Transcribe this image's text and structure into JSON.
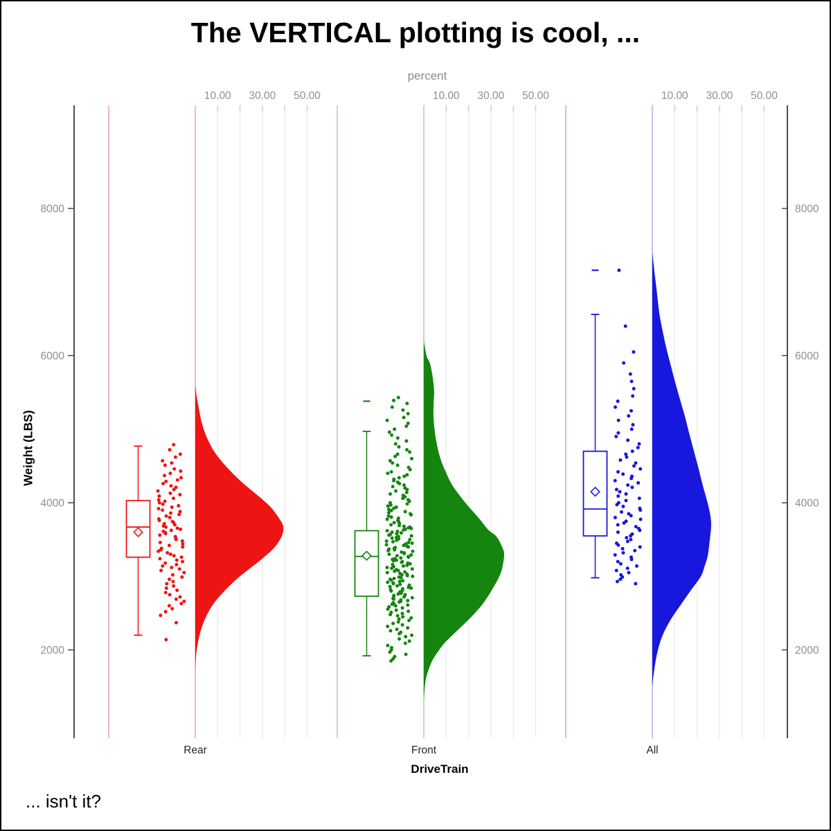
{
  "title": "The VERTICAL plotting is cool, ...",
  "footnote": "... isn't it?",
  "axes": {
    "top": {
      "label": "percent",
      "tick_labels": [
        "10.00",
        "30.00",
        "50.00"
      ],
      "tick_values": [
        10,
        30,
        50
      ],
      "gridline_values": [
        10,
        20,
        30,
        40,
        50
      ]
    },
    "left": {
      "label": "Weight (LBS)",
      "tick_values": [
        2000,
        4000,
        6000,
        8000
      ]
    },
    "right": {
      "tick_values": [
        2000,
        4000,
        6000,
        8000
      ]
    },
    "bottom": {
      "label": "DriveTrain",
      "categories": [
        "Rear",
        "Front",
        "All"
      ]
    }
  },
  "chart_data": {
    "type": "raincloud",
    "description": "vertical half-violin (density in percent) + box plot with mean diamond + jittered raw points, one cloud per DriveTrain category",
    "weight_axis_ticks": [
      2000,
      4000,
      6000,
      8000
    ],
    "percent_axis": {
      "tick_values": [
        10,
        30,
        50
      ],
      "gridline_values": [
        10,
        20,
        30,
        40,
        50
      ]
    },
    "groups": [
      {
        "name": "Rear",
        "color": "#EE1414",
        "light_color": "#F8B9B9",
        "box": {
          "whisker_low": 2200,
          "q1": 3260,
          "median": 3670,
          "mean": 3600,
          "q3": 4030,
          "whisker_high": 4770,
          "far_outliers": []
        },
        "violin_profile": [
          [
            5600,
            0
          ],
          [
            5450,
            0.6
          ],
          [
            5300,
            1.5
          ],
          [
            5100,
            2.8
          ],
          [
            4900,
            5.0
          ],
          [
            4700,
            8.4
          ],
          [
            4500,
            13.6
          ],
          [
            4300,
            20.1
          ],
          [
            4100,
            27.9
          ],
          [
            3950,
            33.4
          ],
          [
            3800,
            37.2
          ],
          [
            3680,
            39.3
          ],
          [
            3550,
            38.7
          ],
          [
            3400,
            35.6
          ],
          [
            3250,
            30.3
          ],
          [
            3100,
            24.1
          ],
          [
            2950,
            18.0
          ],
          [
            2800,
            13.0
          ],
          [
            2650,
            8.7
          ],
          [
            2500,
            5.6
          ],
          [
            2350,
            3.4
          ],
          [
            2200,
            1.9
          ],
          [
            2050,
            0.9
          ],
          [
            1900,
            0.3
          ],
          [
            1700,
            0
          ]
        ],
        "points": [
          4790,
          4720,
          4660,
          4620,
          4570,
          4540,
          4510,
          4460,
          4430,
          4400,
          4370,
          4340,
          4310,
          4290,
          4260,
          4230,
          4210,
          4180,
          4160,
          4130,
          4110,
          4090,
          4060,
          4040,
          4020,
          4000,
          3980,
          3960,
          3940,
          3920,
          3900,
          3880,
          3860,
          3840,
          3820,
          3800,
          3780,
          3760,
          3745,
          3730,
          3715,
          3700,
          3685,
          3670,
          3655,
          3640,
          3625,
          3610,
          3595,
          3580,
          3560,
          3540,
          3520,
          3500,
          3480,
          3460,
          3440,
          3420,
          3400,
          3380,
          3360,
          3340,
          3320,
          3300,
          3280,
          3260,
          3240,
          3220,
          3200,
          3180,
          3160,
          3140,
          3120,
          3100,
          3080,
          3050,
          3020,
          2990,
          2960,
          2930,
          2900,
          2870,
          2840,
          2810,
          2780,
          2750,
          2720,
          2690,
          2660,
          2630,
          2600,
          2560,
          2520,
          2470,
          2370,
          2140
        ]
      },
      {
        "name": "Front",
        "color": "#158510",
        "light_color": "#BEDCBE",
        "box": {
          "whisker_low": 1920,
          "q1": 2730,
          "median": 3270,
          "mean": 3280,
          "q3": 3620,
          "whisker_high": 4970,
          "far_outliers": [
            5380
          ]
        },
        "violin_profile": [
          [
            6200,
            0
          ],
          [
            6000,
            1.2
          ],
          [
            5890,
            2.8
          ],
          [
            5700,
            4.0
          ],
          [
            5520,
            4.6
          ],
          [
            5350,
            4.4
          ],
          [
            5200,
            4.3
          ],
          [
            5050,
            4.6
          ],
          [
            4885,
            5.3
          ],
          [
            4730,
            6.3
          ],
          [
            4575,
            7.7
          ],
          [
            4420,
            9.8
          ],
          [
            4255,
            12.4
          ],
          [
            4100,
            16.0
          ],
          [
            3945,
            20.1
          ],
          [
            3790,
            24.6
          ],
          [
            3633,
            28.8
          ],
          [
            3540,
            32.5
          ],
          [
            3380,
            35.3
          ],
          [
            3285,
            35.9
          ],
          [
            3100,
            35.0
          ],
          [
            2970,
            33.3
          ],
          [
            2845,
            31.0
          ],
          [
            2720,
            28.5
          ],
          [
            2600,
            25.7
          ],
          [
            2470,
            21.9
          ],
          [
            2350,
            18.0
          ],
          [
            2220,
            13.5
          ],
          [
            2095,
            9.3
          ],
          [
            1970,
            6.2
          ],
          [
            1850,
            3.7
          ],
          [
            1720,
            2.0
          ],
          [
            1600,
            0.9
          ],
          [
            1450,
            0.3
          ],
          [
            1320,
            0
          ]
        ],
        "points": [
          5430,
          5390,
          5350,
          5300,
          5260,
          5210,
          5160,
          5120,
          5080,
          5040,
          5000,
          4960,
          4920,
          4880,
          4840,
          4800,
          4760,
          4720,
          4690,
          4660,
          4630,
          4600,
          4570,
          4540,
          4510,
          4480,
          4450,
          4420,
          4400,
          4380,
          4360,
          4340,
          4320,
          4300,
          4280,
          4260,
          4240,
          4220,
          4200,
          4180,
          4160,
          4140,
          4120,
          4100,
          4080,
          4060,
          4040,
          4020,
          4000,
          3985,
          3970,
          3955,
          3940,
          3925,
          3910,
          3895,
          3880,
          3865,
          3850,
          3835,
          3820,
          3805,
          3790,
          3775,
          3760,
          3745,
          3730,
          3715,
          3700,
          3690,
          3680,
          3670,
          3660,
          3650,
          3640,
          3630,
          3620,
          3610,
          3600,
          3590,
          3580,
          3570,
          3560,
          3550,
          3540,
          3530,
          3520,
          3510,
          3500,
          3490,
          3480,
          3470,
          3460,
          3450,
          3440,
          3430,
          3420,
          3410,
          3400,
          3390,
          3380,
          3370,
          3360,
          3350,
          3340,
          3330,
          3320,
          3310,
          3300,
          3290,
          3280,
          3270,
          3260,
          3250,
          3240,
          3230,
          3220,
          3210,
          3200,
          3190,
          3180,
          3170,
          3160,
          3150,
          3140,
          3130,
          3120,
          3110,
          3100,
          3090,
          3080,
          3070,
          3060,
          3050,
          3040,
          3030,
          3020,
          3010,
          3000,
          2990,
          2980,
          2970,
          2960,
          2950,
          2940,
          2930,
          2920,
          2910,
          2900,
          2890,
          2880,
          2870,
          2860,
          2850,
          2840,
          2830,
          2820,
          2810,
          2800,
          2790,
          2780,
          2770,
          2760,
          2750,
          2740,
          2730,
          2720,
          2710,
          2700,
          2690,
          2680,
          2670,
          2660,
          2650,
          2640,
          2630,
          2620,
          2610,
          2600,
          2585,
          2570,
          2555,
          2540,
          2525,
          2510,
          2495,
          2480,
          2465,
          2450,
          2435,
          2420,
          2400,
          2380,
          2360,
          2340,
          2320,
          2300,
          2280,
          2260,
          2240,
          2220,
          2200,
          2180,
          2150,
          2120,
          2090,
          2060,
          2030,
          2000,
          1970,
          1940,
          1910,
          1880,
          1850
        ]
      },
      {
        "name": "All",
        "color": "#1717DD",
        "light_color": "#BFC3EC",
        "box": {
          "whisker_low": 2980,
          "q1": 3550,
          "median": 3915,
          "mean": 4150,
          "q3": 4700,
          "whisker_high": 6560,
          "far_outliers": [
            7160
          ]
        },
        "violin_profile": [
          [
            7400,
            0
          ],
          [
            7150,
            0.9
          ],
          [
            6900,
            1.9
          ],
          [
            6580,
            3.1
          ],
          [
            6350,
            4.5
          ],
          [
            6110,
            6.2
          ],
          [
            5870,
            8.2
          ],
          [
            5640,
            10.2
          ],
          [
            5400,
            12.4
          ],
          [
            5170,
            14.6
          ],
          [
            4930,
            16.6
          ],
          [
            4700,
            18.6
          ],
          [
            4460,
            20.7
          ],
          [
            4230,
            22.6
          ],
          [
            3950,
            25.1
          ],
          [
            3730,
            26.3
          ],
          [
            3500,
            25.7
          ],
          [
            3285,
            24.8
          ],
          [
            3140,
            23.4
          ],
          [
            3000,
            21.7
          ],
          [
            2800,
            17.0
          ],
          [
            2600,
            12.4
          ],
          [
            2400,
            8.0
          ],
          [
            2200,
            4.6
          ],
          [
            2000,
            2.5
          ],
          [
            1800,
            1.2
          ],
          [
            1600,
            0.3
          ],
          [
            1500,
            0
          ]
        ],
        "points": [
          7160,
          6400,
          6050,
          5900,
          5750,
          5650,
          5550,
          5450,
          5380,
          5300,
          5250,
          5180,
          5120,
          5060,
          5000,
          4950,
          4900,
          4850,
          4800,
          4750,
          4700,
          4660,
          4620,
          4580,
          4540,
          4500,
          4460,
          4420,
          4390,
          4360,
          4330,
          4300,
          4270,
          4240,
          4210,
          4180,
          4150,
          4120,
          4090,
          4060,
          4030,
          4000,
          3975,
          3950,
          3925,
          3900,
          3875,
          3850,
          3825,
          3800,
          3775,
          3750,
          3725,
          3700,
          3675,
          3650,
          3625,
          3600,
          3575,
          3550,
          3525,
          3500,
          3475,
          3450,
          3425,
          3400,
          3375,
          3350,
          3320,
          3290,
          3260,
          3230,
          3200,
          3170,
          3140,
          3110,
          3080,
          3050,
          3020,
          2990,
          2960,
          2930,
          2900
        ]
      }
    ]
  },
  "style_colors": {
    "gridline": "#EDEDED",
    "grid_tick_stub": "#D4D4D4",
    "axis_line": "#000000",
    "tick_mark": "#3A3A3A",
    "tick_label": "#8F8F8F",
    "category_label": "#262626"
  }
}
